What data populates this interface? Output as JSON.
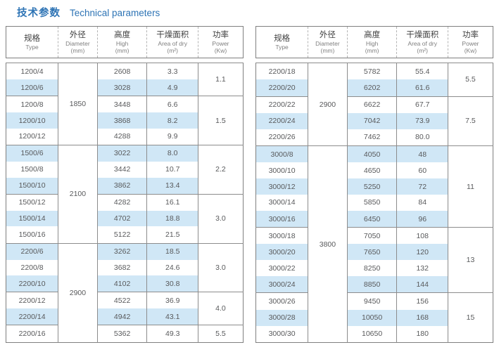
{
  "title": {
    "zh": "技术参数",
    "en": "Technical parameters"
  },
  "colors": {
    "accent_blue": "#2e74b5",
    "stripe_blue": "#d0e7f6",
    "border_gray": "#8c8c8c",
    "text_gray": "#58595b"
  },
  "header": {
    "type": {
      "zh": "规格",
      "en": "Type"
    },
    "diameter": {
      "zh": "外径",
      "en": "Diameter",
      "unit": "(mm)"
    },
    "high": {
      "zh": "高度",
      "en": "High",
      "unit": "(mm)"
    },
    "area": {
      "zh": "干燥面积",
      "en": "Area of dry",
      "unit": "(m²)"
    },
    "power": {
      "zh": "功率",
      "en": "Power",
      "unit": "(Kw)"
    }
  },
  "tables": [
    {
      "rows": [
        {
          "type": "1200/4",
          "high": "2608",
          "area": "3.3"
        },
        {
          "type": "1200/6",
          "high": "3028",
          "area": "4.9"
        },
        {
          "type": "1200/8",
          "high": "3448",
          "area": "6.6"
        },
        {
          "type": "1200/10",
          "high": "3868",
          "area": "8.2"
        },
        {
          "type": "1200/12",
          "high": "4288",
          "area": "9.9"
        },
        {
          "type": "1500/6",
          "high": "3022",
          "area": "8.0"
        },
        {
          "type": "1500/8",
          "high": "3442",
          "area": "10.7"
        },
        {
          "type": "1500/10",
          "high": "3862",
          "area": "13.4"
        },
        {
          "type": "1500/12",
          "high": "4282",
          "area": "16.1"
        },
        {
          "type": "1500/14",
          "high": "4702",
          "area": "18.8"
        },
        {
          "type": "1500/16",
          "high": "5122",
          "area": "21.5"
        },
        {
          "type": "2200/6",
          "high": "3262",
          "area": "18.5"
        },
        {
          "type": "2200/8",
          "high": "3682",
          "area": "24.6"
        },
        {
          "type": "2200/10",
          "high": "4102",
          "area": "30.8"
        },
        {
          "type": "2200/12",
          "high": "4522",
          "area": "36.9"
        },
        {
          "type": "2200/14",
          "high": "4942",
          "area": "43.1"
        },
        {
          "type": "2200/16",
          "high": "5362",
          "area": "49.3"
        }
      ],
      "diameter_groups": [
        {
          "value": "1850",
          "span": 5
        },
        {
          "value": "2100",
          "span": 6
        },
        {
          "value": "2900",
          "span": 6
        }
      ],
      "power_groups": [
        {
          "value": "1.1",
          "span": 2
        },
        {
          "value": "1.5",
          "span": 3
        },
        {
          "value": "2.2",
          "span": 3
        },
        {
          "value": "3.0",
          "span": 3
        },
        {
          "value": "3.0",
          "span": 3
        },
        {
          "value": "4.0",
          "span": 2
        },
        {
          "value": "5.5",
          "span": 1
        }
      ]
    },
    {
      "rows": [
        {
          "type": "2200/18",
          "high": "5782",
          "area": "55.4"
        },
        {
          "type": "2200/20",
          "high": "6202",
          "area": "61.6"
        },
        {
          "type": "2200/22",
          "high": "6622",
          "area": "67.7"
        },
        {
          "type": "2200/24",
          "high": "7042",
          "area": "73.9"
        },
        {
          "type": "2200/26",
          "high": "7462",
          "area": "80.0"
        },
        {
          "type": "3000/8",
          "high": "4050",
          "area": "48"
        },
        {
          "type": "3000/10",
          "high": "4650",
          "area": "60"
        },
        {
          "type": "3000/12",
          "high": "5250",
          "area": "72"
        },
        {
          "type": "3000/14",
          "high": "5850",
          "area": "84"
        },
        {
          "type": "3000/16",
          "high": "6450",
          "area": "96"
        },
        {
          "type": "3000/18",
          "high": "7050",
          "area": "108"
        },
        {
          "type": "3000/20",
          "high": "7650",
          "area": "120"
        },
        {
          "type": "3000/22",
          "high": "8250",
          "area": "132"
        },
        {
          "type": "3000/24",
          "high": "8850",
          "area": "144"
        },
        {
          "type": "3000/26",
          "high": "9450",
          "area": "156"
        },
        {
          "type": "3000/28",
          "high": "10050",
          "area": "168"
        },
        {
          "type": "3000/30",
          "high": "10650",
          "area": "180"
        }
      ],
      "diameter_groups": [
        {
          "value": "2900",
          "span": 5
        },
        {
          "value": "3800",
          "span": 12
        }
      ],
      "power_groups": [
        {
          "value": "5.5",
          "span": 2
        },
        {
          "value": "7.5",
          "span": 3
        },
        {
          "value": "11",
          "span": 5
        },
        {
          "value": "13",
          "span": 4
        },
        {
          "value": "15",
          "span": 3
        }
      ]
    }
  ]
}
